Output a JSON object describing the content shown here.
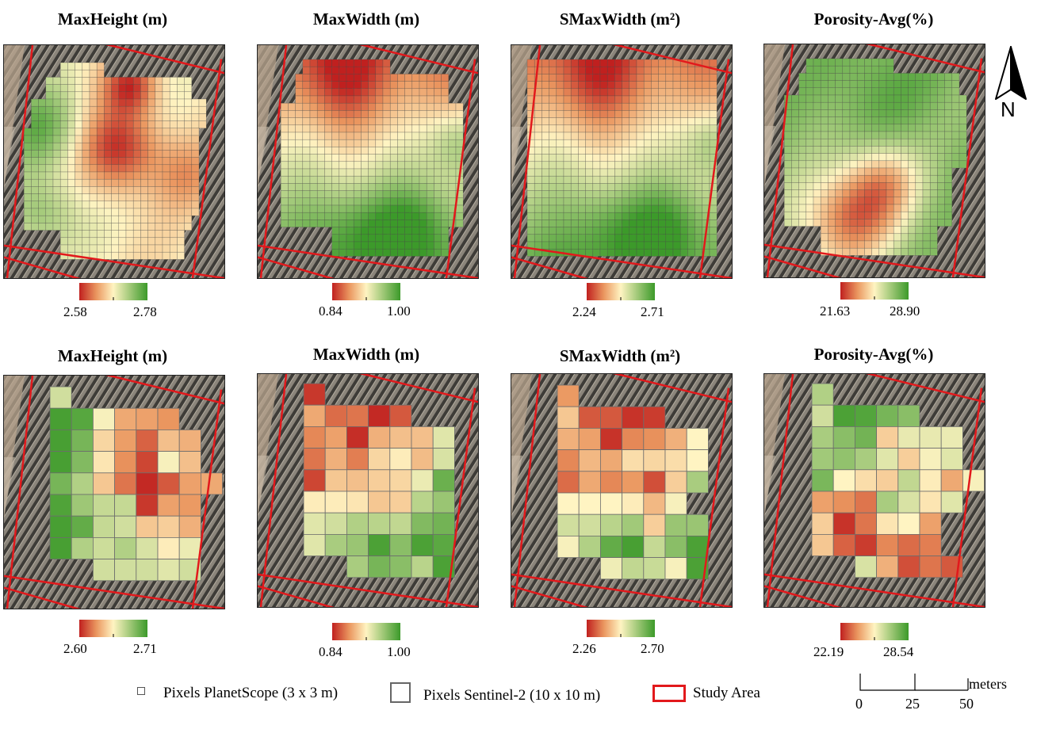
{
  "colors": {
    "low": "#c0201f",
    "mid": "#fff4c2",
    "high": "#3c9a2a",
    "study_area": "#e2191c"
  },
  "panels": [
    {
      "row": "planetscope",
      "title": "MaxHeight (m)",
      "min_label": "2.58",
      "max_label": "2.78",
      "pattern": "height_ps"
    },
    {
      "row": "planetscope",
      "title": "MaxWidth (m)",
      "min_label": "0.84",
      "max_label": "1.00",
      "pattern": "width_ps"
    },
    {
      "row": "planetscope",
      "title": "SMaxWidth (m²)",
      "min_label": "2.24",
      "max_label": "2.71",
      "pattern": "swidth_ps"
    },
    {
      "row": "planetscope",
      "title": "Porosity-Avg(%)",
      "min_label": "21.63",
      "max_label": "28.90",
      "pattern": "poro_ps"
    },
    {
      "row": "sentinel",
      "title": "MaxHeight (m)",
      "min_label": "2.60",
      "max_label": "2.71",
      "pattern": "height_s2"
    },
    {
      "row": "sentinel",
      "title": "MaxWidth (m)",
      "min_label": "0.84",
      "max_label": "1.00",
      "pattern": "width_s2"
    },
    {
      "row": "sentinel",
      "title": "SMaxWidth (m²)",
      "min_label": "2.26",
      "max_label": "2.70",
      "pattern": "swidth_s2"
    },
    {
      "row": "sentinel",
      "title": "Porosity-Avg(%)",
      "min_label": "22.19",
      "max_label": "28.54",
      "pattern": "poro_s2"
    }
  ],
  "legend": {
    "planetscope": "Pixels PlanetScope (3 x 3 m)",
    "sentinel": "Pixels Sentinel-2 (10 x 10 m)",
    "study_area": "Study Area"
  },
  "north_arrow": {
    "label": "N"
  },
  "scale_bar": {
    "unit": "meters",
    "ticks": [
      "0",
      "25",
      "50"
    ]
  }
}
